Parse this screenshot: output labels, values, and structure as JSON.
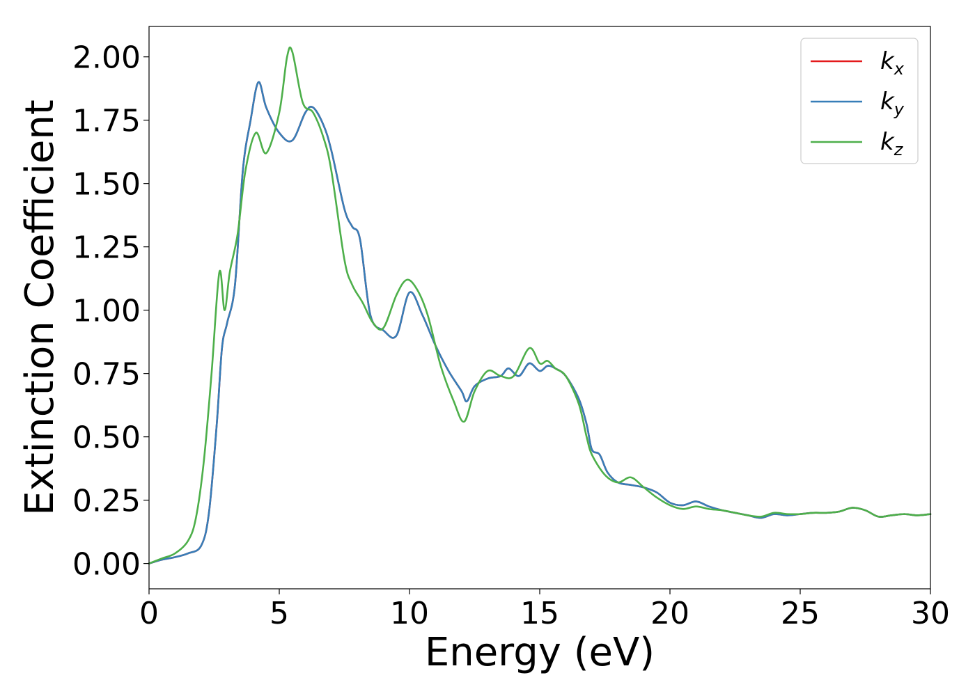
{
  "chart_data": {
    "type": "line",
    "title": "",
    "xlabel": "Energy (eV)",
    "ylabel": "Extinction Coefficient",
    "xlim": [
      0,
      30
    ],
    "ylim": [
      -0.1,
      2.12
    ],
    "x_ticks": [
      0,
      5,
      10,
      15,
      20,
      25,
      30
    ],
    "x_tick_labels": [
      "0",
      "5",
      "10",
      "15",
      "20",
      "25",
      "30"
    ],
    "y_ticks": [
      0,
      0.25,
      0.5,
      0.75,
      1.0,
      1.25,
      1.5,
      1.75,
      2.0
    ],
    "y_tick_labels": [
      "0.00",
      "0.25",
      "0.50",
      "0.75",
      "1.00",
      "1.25",
      "1.50",
      "1.75",
      "2.00"
    ],
    "grid": false,
    "legend_position": "top-right",
    "series": [
      {
        "name": "k_x",
        "label_main": "k",
        "label_sub": "x",
        "color": "#e41a1c",
        "x": [
          0,
          0.5,
          1.0,
          1.5,
          2.0,
          2.3,
          2.6,
          2.8,
          3.0,
          3.3,
          3.6,
          3.9,
          4.2,
          4.5,
          5.0,
          5.5,
          6.0,
          6.3,
          6.7,
          7.0,
          7.5,
          7.8,
          8.1,
          8.5,
          9.0,
          9.5,
          10.0,
          10.5,
          11.0,
          11.5,
          12.0,
          12.2,
          12.5,
          13.0,
          13.5,
          13.8,
          14.2,
          14.6,
          15.0,
          15.3,
          15.6,
          16.0,
          16.5,
          16.8,
          17.0,
          17.3,
          17.6,
          18.0,
          18.5,
          19.0,
          19.5,
          20.0,
          20.5,
          21.0,
          21.5,
          22.0,
          22.5,
          23.0,
          23.5,
          24.0,
          24.5,
          25.0,
          25.5,
          26.0,
          26.5,
          27.0,
          27.5,
          28.0,
          28.5,
          29.0,
          29.5,
          30.0
        ],
        "y": [
          0.0,
          0.015,
          0.025,
          0.04,
          0.07,
          0.2,
          0.55,
          0.85,
          0.95,
          1.1,
          1.55,
          1.75,
          1.9,
          1.8,
          1.7,
          1.67,
          1.78,
          1.8,
          1.73,
          1.63,
          1.4,
          1.33,
          1.28,
          0.98,
          0.92,
          0.9,
          1.07,
          0.98,
          0.86,
          0.76,
          0.68,
          0.64,
          0.7,
          0.73,
          0.74,
          0.77,
          0.74,
          0.79,
          0.76,
          0.78,
          0.77,
          0.74,
          0.65,
          0.55,
          0.45,
          0.43,
          0.36,
          0.32,
          0.31,
          0.3,
          0.28,
          0.24,
          0.23,
          0.245,
          0.225,
          0.21,
          0.2,
          0.19,
          0.18,
          0.195,
          0.19,
          0.195,
          0.2,
          0.2,
          0.205,
          0.22,
          0.21,
          0.185,
          0.19,
          0.195,
          0.19,
          0.195
        ]
      },
      {
        "name": "k_y",
        "label_main": "k",
        "label_sub": "y",
        "color": "#377eb8",
        "x": [
          0,
          0.5,
          1.0,
          1.5,
          2.0,
          2.3,
          2.6,
          2.8,
          3.0,
          3.3,
          3.6,
          3.9,
          4.2,
          4.5,
          5.0,
          5.5,
          6.0,
          6.3,
          6.7,
          7.0,
          7.5,
          7.8,
          8.1,
          8.5,
          9.0,
          9.5,
          10.0,
          10.5,
          11.0,
          11.5,
          12.0,
          12.2,
          12.5,
          13.0,
          13.5,
          13.8,
          14.2,
          14.6,
          15.0,
          15.3,
          15.6,
          16.0,
          16.5,
          16.8,
          17.0,
          17.3,
          17.6,
          18.0,
          18.5,
          19.0,
          19.5,
          20.0,
          20.5,
          21.0,
          21.5,
          22.0,
          22.5,
          23.0,
          23.5,
          24.0,
          24.5,
          25.0,
          25.5,
          26.0,
          26.5,
          27.0,
          27.5,
          28.0,
          28.5,
          29.0,
          29.5,
          30.0
        ],
        "y": [
          0.0,
          0.015,
          0.025,
          0.04,
          0.07,
          0.2,
          0.55,
          0.85,
          0.95,
          1.1,
          1.55,
          1.75,
          1.9,
          1.8,
          1.7,
          1.67,
          1.78,
          1.8,
          1.73,
          1.63,
          1.4,
          1.33,
          1.28,
          0.98,
          0.92,
          0.9,
          1.07,
          0.98,
          0.86,
          0.76,
          0.68,
          0.64,
          0.7,
          0.73,
          0.74,
          0.77,
          0.74,
          0.79,
          0.76,
          0.78,
          0.77,
          0.74,
          0.65,
          0.55,
          0.45,
          0.43,
          0.36,
          0.32,
          0.31,
          0.3,
          0.28,
          0.24,
          0.23,
          0.245,
          0.225,
          0.21,
          0.2,
          0.19,
          0.18,
          0.195,
          0.19,
          0.195,
          0.2,
          0.2,
          0.205,
          0.22,
          0.21,
          0.185,
          0.19,
          0.195,
          0.19,
          0.195
        ]
      },
      {
        "name": "k_z",
        "label_main": "k",
        "label_sub": "z",
        "color": "#4daf4a",
        "x": [
          0,
          0.5,
          1.0,
          1.5,
          1.8,
          2.1,
          2.4,
          2.7,
          2.9,
          3.1,
          3.4,
          3.7,
          4.1,
          4.5,
          5.0,
          5.3,
          5.5,
          5.9,
          6.3,
          6.7,
          7.0,
          7.5,
          7.8,
          8.2,
          8.6,
          9.0,
          9.5,
          9.9,
          10.3,
          10.7,
          11.2,
          11.7,
          12.1,
          12.5,
          13.0,
          13.5,
          14.0,
          14.6,
          15.0,
          15.3,
          15.6,
          16.0,
          16.5,
          16.8,
          17.0,
          17.5,
          18.0,
          18.5,
          19.0,
          19.5,
          20.0,
          20.5,
          21.0,
          21.5,
          22.0,
          22.5,
          23.0,
          23.5,
          24.0,
          24.5,
          25.0,
          25.5,
          26.0,
          26.5,
          27.0,
          27.5,
          28.0,
          28.5,
          29.0,
          29.5,
          30.0
        ],
        "y": [
          0.0,
          0.02,
          0.04,
          0.09,
          0.18,
          0.4,
          0.75,
          1.15,
          1.0,
          1.15,
          1.3,
          1.55,
          1.7,
          1.62,
          1.78,
          2.0,
          2.02,
          1.82,
          1.78,
          1.68,
          1.55,
          1.2,
          1.1,
          1.03,
          0.95,
          0.93,
          1.06,
          1.12,
          1.08,
          0.98,
          0.78,
          0.64,
          0.56,
          0.68,
          0.76,
          0.74,
          0.74,
          0.85,
          0.79,
          0.8,
          0.77,
          0.74,
          0.63,
          0.5,
          0.43,
          0.35,
          0.32,
          0.34,
          0.3,
          0.26,
          0.23,
          0.215,
          0.225,
          0.215,
          0.21,
          0.2,
          0.19,
          0.185,
          0.2,
          0.195,
          0.195,
          0.2,
          0.2,
          0.205,
          0.22,
          0.21,
          0.185,
          0.19,
          0.195,
          0.19,
          0.195
        ]
      }
    ]
  }
}
